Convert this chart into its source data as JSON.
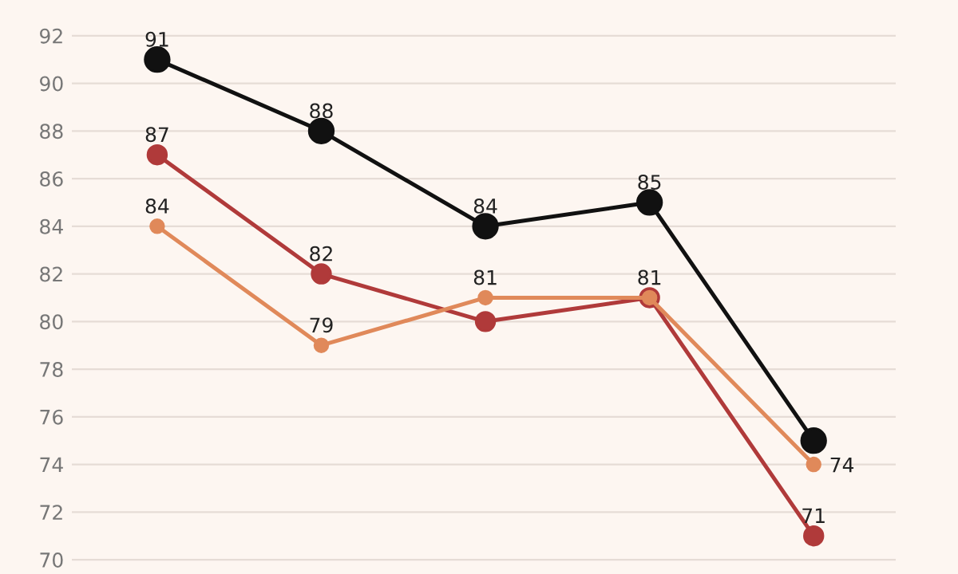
{
  "chart_data": {
    "type": "line",
    "categories": [
      null,
      null,
      null,
      null,
      null
    ],
    "series": [
      {
        "color": "#111111",
        "values": [
          91,
          88,
          84,
          85,
          75
        ],
        "value_labels": [
          "91",
          "88",
          "84",
          "85",
          null
        ]
      },
      {
        "color": "#b03a3a",
        "values": [
          87,
          82,
          80,
          81,
          71
        ],
        "value_labels": [
          "87",
          "82",
          null,
          null,
          "71"
        ]
      },
      {
        "color": "#e0895a",
        "values": [
          84,
          79,
          81,
          81,
          74
        ],
        "value_labels": [
          "84",
          "79",
          "81",
          "81",
          "74"
        ]
      }
    ],
    "ylim": [
      69.4,
      93.5
    ],
    "yticks": [
      70,
      72,
      74,
      76,
      78,
      80,
      82,
      84,
      86,
      88,
      90,
      92
    ],
    "grid": "y",
    "marker": "circle",
    "line_style": "solid",
    "tick_labels": "y",
    "legend": false
  }
}
